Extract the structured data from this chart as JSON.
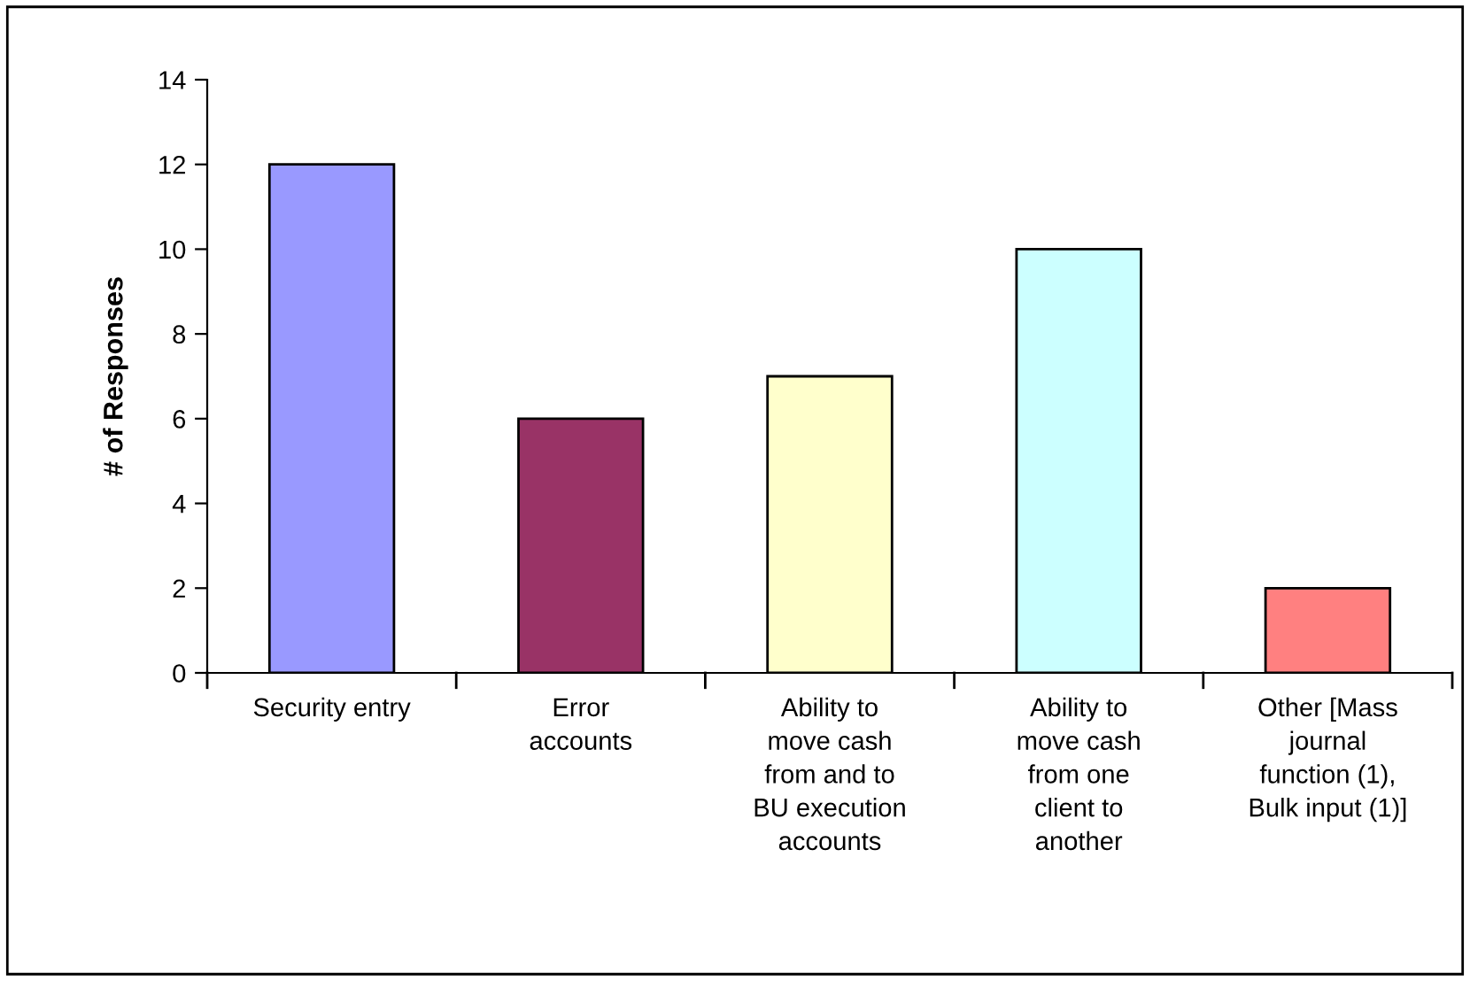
{
  "chart_data": {
    "type": "bar",
    "ylabel": "# of Responses",
    "categories": [
      "Security entry",
      "Error\naccounts",
      "Ability to\nmove cash\nfrom and to\nBU execution\naccounts",
      "Ability to\nmove cash\nfrom one\nclient to\nanother",
      "Other [Mass\njournal\nfunction (1),\nBulk input (1)]"
    ],
    "values": [
      12,
      6,
      7,
      10,
      2
    ],
    "colors": [
      "#9999ff",
      "#993366",
      "#ffffcc",
      "#ccffff",
      "#ff8080"
    ],
    "ylim": [
      0,
      14
    ],
    "yticks": [
      0,
      2,
      4,
      6,
      8,
      10,
      12,
      14
    ],
    "grid": false,
    "legend": false
  }
}
